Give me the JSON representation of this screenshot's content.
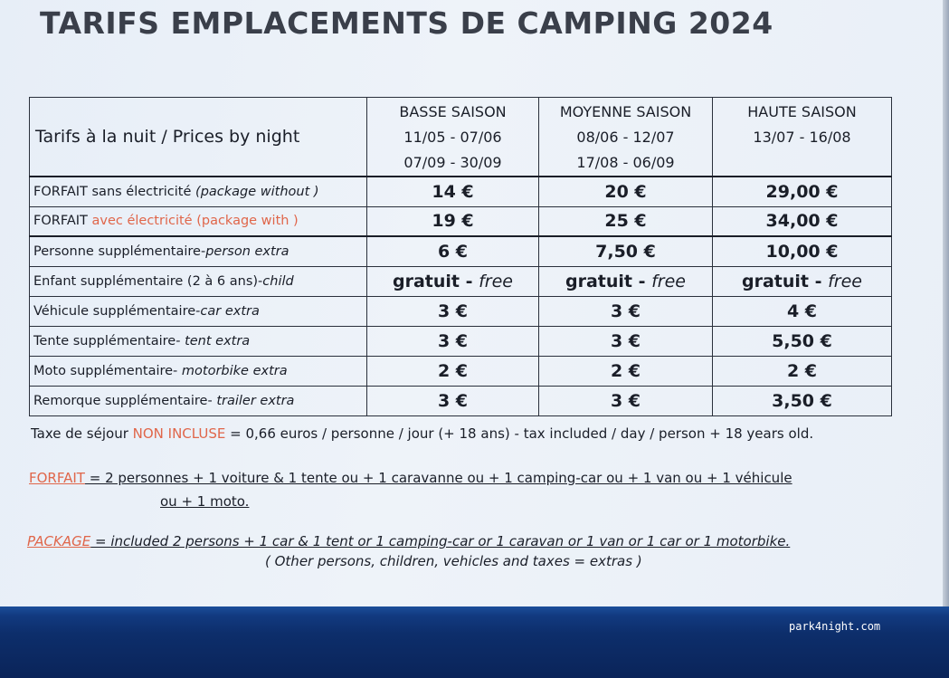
{
  "title": "TARIFS EMPLACEMENTS DE CAMPING 2024",
  "table": {
    "header_label": "Tarifs à la nuit / Prices by night",
    "seasons": [
      {
        "name": "BASSE SAISON",
        "dates1": "11/05 - 07/06",
        "dates2": "07/09 - 30/09"
      },
      {
        "name": "MOYENNE SAISON",
        "dates1": "08/06 - 12/07",
        "dates2": "17/08 - 06/09"
      },
      {
        "name": "HAUTE SAISON",
        "dates1": "13/07 - 16/08",
        "dates2": ""
      }
    ],
    "rows": [
      {
        "fr": "FORFAIT sans électricité",
        "en": " (package without )",
        "values": [
          "14 €",
          "20 €",
          "29,00 €"
        ]
      },
      {
        "fr": "FORFAIT ",
        "fr_red": "avec électricité",
        "en": " (package with )",
        "values": [
          "19 €",
          "25 €",
          "34,00 €"
        ]
      },
      {
        "fr": "Personne supplémentaire-",
        "en": "person extra",
        "values": [
          "6 €",
          "7,50 €",
          "10,00 €"
        ]
      },
      {
        "fr": "Enfant supplémentaire (2 à 6 ans)-",
        "en": "child",
        "values": [
          "gratuit - ",
          "gratuit - ",
          "gratuit - "
        ],
        "free": "free"
      },
      {
        "fr": "Véhicule supplémentaire-",
        "en": "car extra",
        "values": [
          "3 €",
          "3 €",
          "4 €"
        ]
      },
      {
        "fr": "Tente supplémentaire- ",
        "en": "tent extra",
        "values": [
          "3 €",
          "3 €",
          "5,50 €"
        ]
      },
      {
        "fr": "Moto supplémentaire- ",
        "en": "motorbike extra",
        "values": [
          "2 €",
          "2 €",
          "2 €"
        ]
      },
      {
        "fr": "Remorque supplémentaire- ",
        "en": "trailer extra",
        "values": [
          "3 €",
          "3 €",
          "3,50 €"
        ]
      }
    ]
  },
  "notes": {
    "tax_prefix": "Taxe de séjour ",
    "tax_red": "NON INCLUSE",
    "tax_bold": " = 0,66 euros / personne / jour (+ 18 ans)",
    "tax_en": " - tax included / day / person + 18 years old.",
    "forfait_label": "FORFAIT",
    "forfait_text1": " = 2 personnes + 1 voiture & 1 tente ou + 1 caravanne ou + 1 camping-car ou + 1 van ou + 1 véhicule",
    "forfait_text2": "ou + 1 moto.",
    "package_label": "PACKAGE",
    "package_text": "  =  included 2 persons + 1 car & 1 tent or 1 camping-car or 1 caravan or 1 van or 1 car or 1 motorbike.",
    "extras": "( Other persons, children, vehicles and taxes = extras )"
  },
  "watermark": "park4night.com"
}
